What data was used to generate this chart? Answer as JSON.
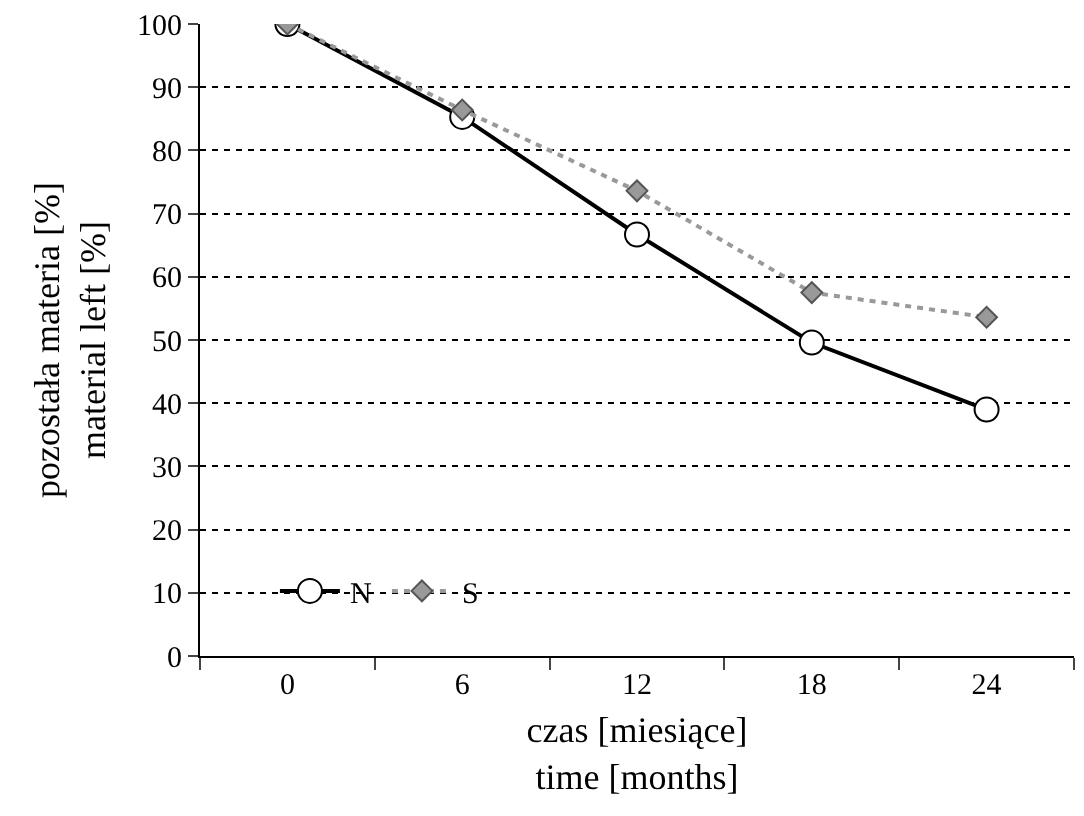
{
  "chart_data": {
    "type": "line",
    "xlabel": "czas [miesiące]\ntime [months]",
    "ylabel": "pozostała materia [%]\nmaterial left [%]",
    "categories": [
      "0",
      "6",
      "12",
      "18",
      "24"
    ],
    "series": [
      {
        "name": "N",
        "color": "#000000",
        "values": [
          100,
          85.3,
          66.7,
          49.6,
          39
        ],
        "marker": "circle",
        "line_style": "solid"
      },
      {
        "name": "S",
        "color": "#999999",
        "values": [
          100,
          86.4,
          73.6,
          57.5,
          53.6
        ],
        "marker": "diamond",
        "line_style": "dotted"
      }
    ],
    "ylim": [
      0,
      100
    ],
    "yticks": [
      0,
      10,
      20,
      30,
      40,
      50,
      60,
      70,
      80,
      90,
      100
    ],
    "grid": "y",
    "legend": "bottom left"
  }
}
